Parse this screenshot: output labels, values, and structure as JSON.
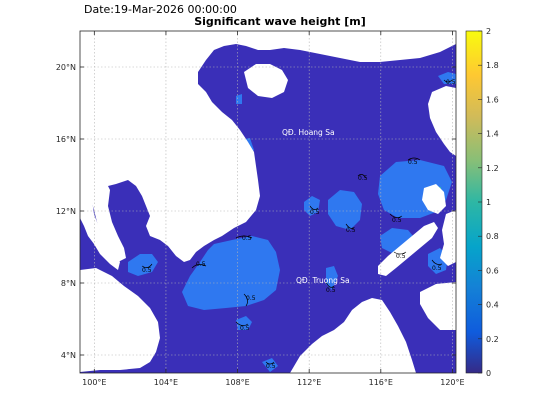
{
  "date_label": "Date:19-Mar-2026 00:00:00",
  "title": "Significant wave height [m]",
  "x_ticks": [
    "100°E",
    "104°E",
    "108°E",
    "112°E",
    "116°E",
    "120°E"
  ],
  "y_ticks": [
    "4°N",
    "8°N",
    "12°N",
    "16°N",
    "20°N"
  ],
  "colorbar": {
    "ticks": [
      "0",
      "0.2",
      "0.4",
      "0.6",
      "0.8",
      "1",
      "1.2",
      "1.4",
      "1.6",
      "1.8",
      "2"
    ],
    "colormap": "parula",
    "range": [
      0,
      2
    ]
  },
  "place_labels": [
    {
      "id": "hoang-sa",
      "text": "QĐ. Hoang Sa"
    },
    {
      "id": "truong-sa",
      "text": "QĐ. Truong Sa"
    }
  ],
  "contour_labels": [
    "0.5",
    "0.5",
    "0.5",
    "0.5",
    "0.5",
    "0.5",
    "0.5",
    "0.5",
    "0.5",
    "0.5",
    "0.5",
    "0.5",
    "0.5",
    "0.5",
    "0.5"
  ],
  "colors": {
    "sea_low": "#3a2fb8",
    "sea_mid": "#2f78f0",
    "land": "#ffffff",
    "grid": "#b4b4b4"
  },
  "chart_data": {
    "type": "heatmap",
    "title": "Significant wave height [m]",
    "xlim": [
      99.2,
      120.2
    ],
    "ylim": [
      3,
      22
    ],
    "grid": true,
    "legend": "colorbar right",
    "note_values_m": {
      "open_sea": 0.2,
      "patches": 0.4
    }
  }
}
